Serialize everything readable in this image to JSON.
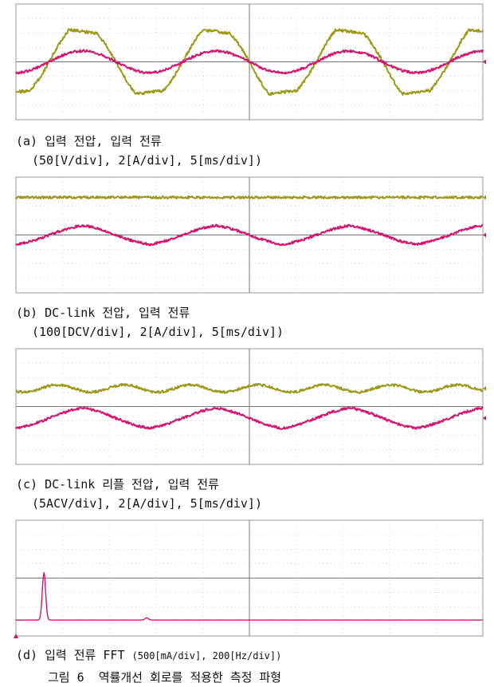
{
  "chart_data": [
    {
      "type": "line",
      "id": "a",
      "caption_line1": "(a) 입력 전압, 입력 전류",
      "caption_line2": "(50[V/div], 2[A/div], 5[ms/div])",
      "colors": {
        "ch1": "#9a9a16",
        "ch2": "#d4136e",
        "grid": "#b5b5b5"
      },
      "series": [
        {
          "channel": "ch1",
          "waveform": "clipped-sine",
          "amplitude_div": 2.1,
          "offset_div": 0,
          "periods": 3.5
        },
        {
          "channel": "ch2",
          "waveform": "sine",
          "amplitude_div": 0.75,
          "offset_div": 0,
          "periods": 3.5
        }
      ]
    },
    {
      "type": "line",
      "id": "b",
      "caption_line1": "(b) DC-link 전압, 입력 전류",
      "caption_line2": "(100[DCV/div], 2[A/div], 5[ms/div])",
      "series": [
        {
          "channel": "ch1",
          "waveform": "dc",
          "amplitude_div": 0,
          "offset_div": 2.6
        },
        {
          "channel": "ch2",
          "waveform": "rectified-sine",
          "amplitude_div": 0.65,
          "offset_div": 0,
          "periods": 3.5
        }
      ]
    },
    {
      "type": "line",
      "id": "c",
      "caption_line1": "(c) DC-link 리플 전압, 입력 전류",
      "caption_line2": "(5ACV/div], 2[A/div], 5[ms/div])",
      "series": [
        {
          "channel": "ch1",
          "waveform": "ripple",
          "amplitude_div": 0.25,
          "offset_div": 1.25,
          "periods": 3.5
        },
        {
          "channel": "ch2",
          "waveform": "triangle-sine",
          "amplitude_div": 0.7,
          "offset_div": -0.8,
          "periods": 3.5
        }
      ]
    },
    {
      "type": "line",
      "id": "d",
      "caption_main": "(d) 입력 전류 FFT ",
      "caption_small": "(500[mA/div], 200[Hz/div])",
      "series": [
        {
          "channel": "ch2",
          "waveform": "fft",
          "peaks": [
            {
              "x_hz": 120,
              "amp_div": 3.3
            },
            {
              "x_hz": 560,
              "amp_div": 0.15
            }
          ]
        }
      ]
    }
  ],
  "figure_caption": "그림 6  역률개선 회로를 적용한 측정 파형"
}
